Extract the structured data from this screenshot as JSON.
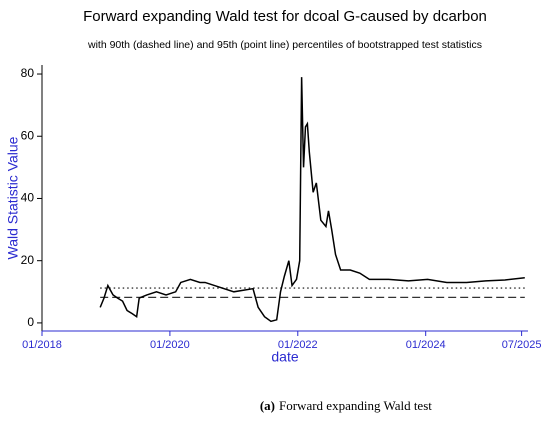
{
  "chart_data": {
    "type": "line",
    "title": "Forward expanding Wald test for dcoal G-caused by dcarbon",
    "subtitle": "with 90th (dashed line) and 95th (point line) percentiles of bootstrapped test statistics",
    "x_label": "date",
    "y_label": "Wald Statistic Value",
    "x": [
      2018.91,
      2018.97,
      2019.03,
      2019.11,
      2019.18,
      2019.26,
      2019.33,
      2019.41,
      2019.48,
      2019.52,
      2019.64,
      2019.79,
      2019.94,
      2020.09,
      2020.17,
      2020.32,
      2020.47,
      2020.55,
      2021.0,
      2021.3,
      2021.38,
      2021.48,
      2021.58,
      2021.67,
      2021.73,
      2021.79,
      2021.86,
      2021.91,
      2021.98,
      2022.03,
      2022.06,
      2022.09,
      2022.12,
      2022.15,
      2022.18,
      2022.24,
      2022.29,
      2022.36,
      2022.44,
      2022.48,
      2022.53,
      2022.59,
      2022.67,
      2022.82,
      2022.97,
      2023.12,
      2023.42,
      2023.73,
      2024.03,
      2024.33,
      2024.64,
      2024.94,
      2025.24,
      2025.55
    ],
    "series": [
      {
        "color": "#000000",
        "values": [
          5,
          8,
          12,
          9,
          8,
          7,
          4,
          3,
          2,
          8,
          9,
          10,
          9,
          10,
          13,
          14,
          13,
          13,
          10,
          11,
          5,
          2,
          0.5,
          1,
          10,
          15,
          20,
          12,
          14,
          20,
          79,
          50,
          63,
          64,
          55,
          42,
          45,
          33,
          31,
          36,
          30,
          22,
          17,
          17,
          16,
          14,
          14,
          13.5,
          14,
          13,
          13,
          13.5,
          13.8,
          14.5
        ]
      }
    ],
    "percentile_lines": [
      {
        "style": "dashed",
        "value": 8.2
      },
      {
        "style": "dotted",
        "value": 11.2
      }
    ],
    "xlim": [
      2018.0,
      2025.6
    ],
    "ylim": [
      -2.6,
      82.9
    ],
    "xticks": [
      {
        "value": 2018.0,
        "label": "01/2018"
      },
      {
        "value": 2020.0,
        "label": "01/2020"
      },
      {
        "value": 2022.0,
        "label": "01/2022"
      },
      {
        "value": 2024.0,
        "label": "01/2024"
      },
      {
        "value": 2025.5,
        "label": "07/2025"
      }
    ],
    "yticks": [
      0,
      20,
      40,
      60,
      80
    ],
    "axis_color": "#2b2bd0"
  },
  "caption": {
    "label": "(a)",
    "text": "Forward expanding Wald test"
  }
}
